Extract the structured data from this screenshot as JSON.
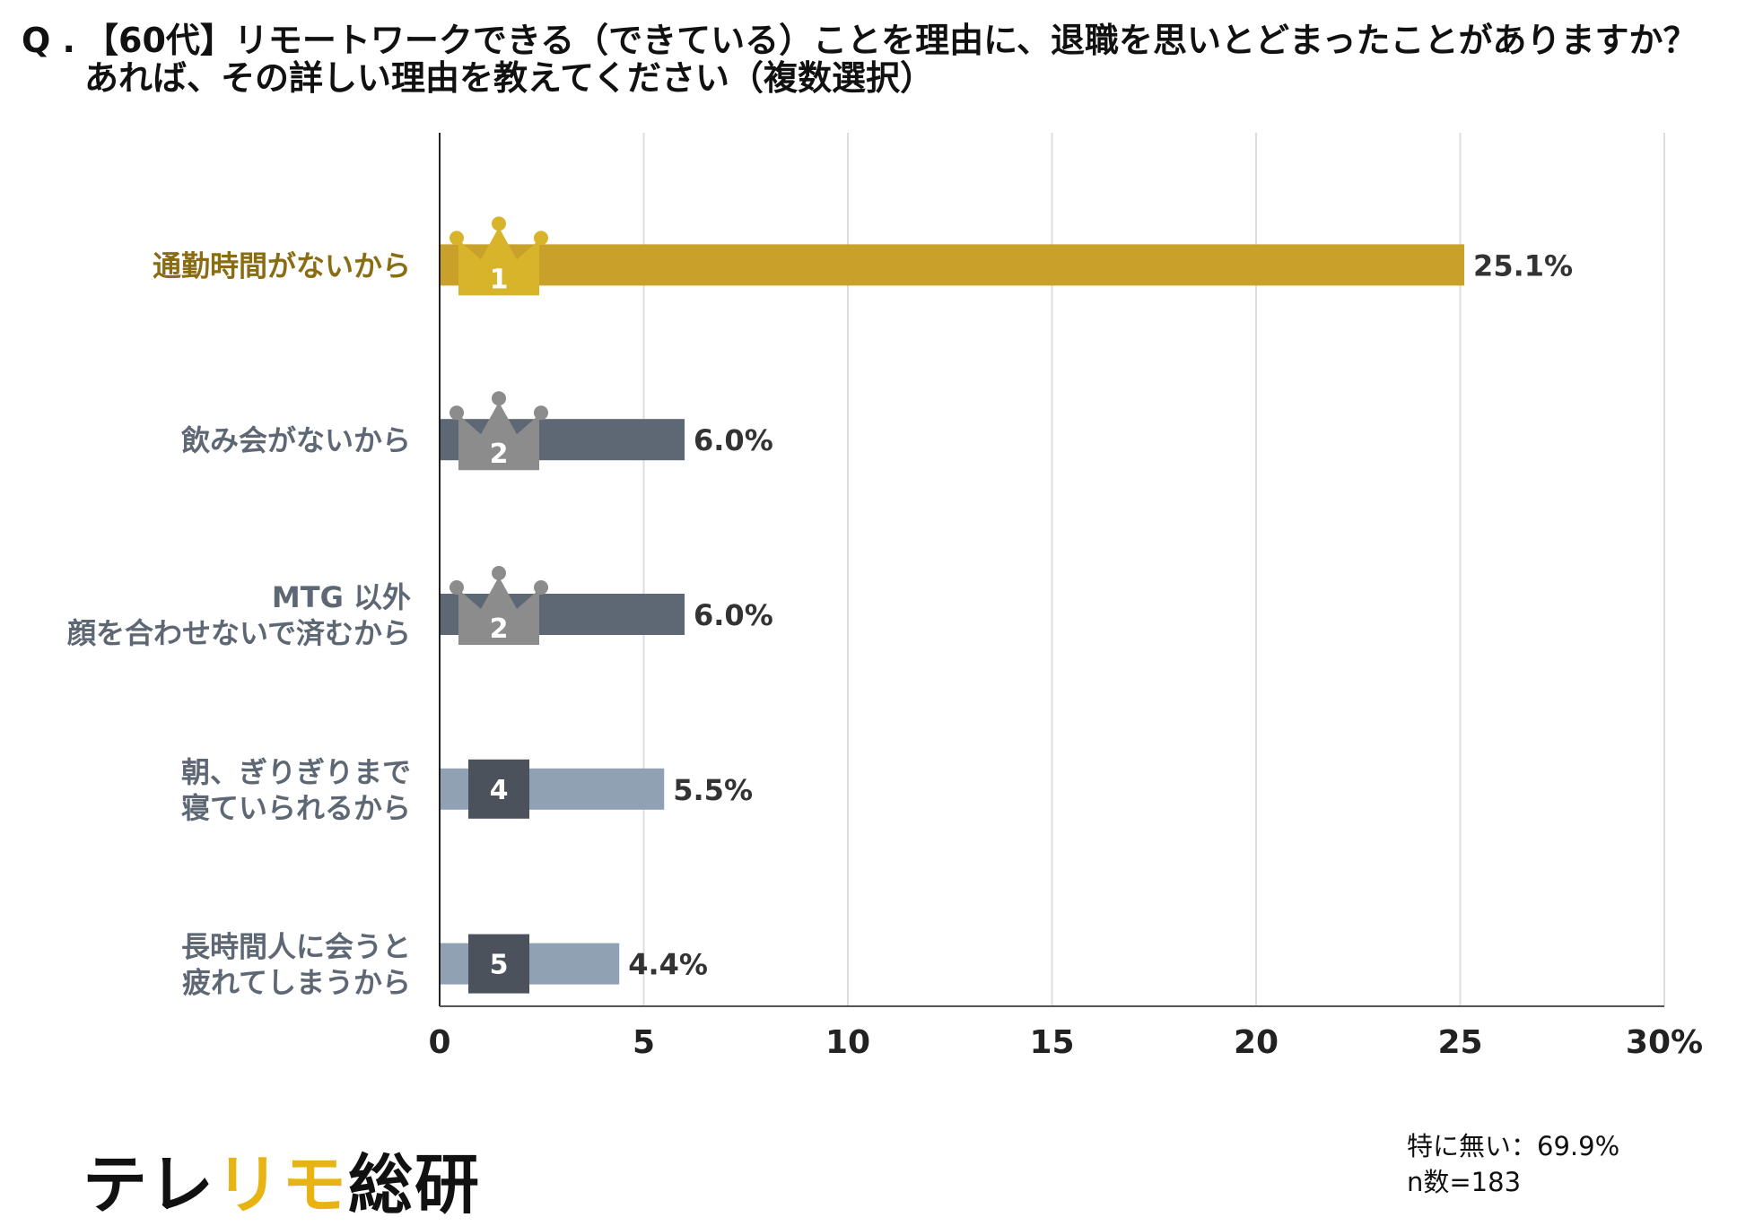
{
  "question": {
    "prefix": "Q .",
    "line1": "【60代】リモートワークできる（できている）ことを理由に、退職を思いとどまったことがありますか？",
    "line2": "あれば、その詳しい理由を教えてください（複数選択）"
  },
  "logo": {
    "part1": "テレ",
    "part2": "リモ",
    "part3": "総研"
  },
  "notes": {
    "none": "特に無い：69.9%",
    "n": "n数=183"
  },
  "colors": {
    "gold": "#c9a02a",
    "dark": "#5e6874",
    "light": "#8fa1b2",
    "crown_gold": "#d8b42a",
    "crown_silver": "#8c8c8c",
    "badge": "#4c525c",
    "grid": "#dddddd"
  },
  "chart_data": {
    "type": "bar",
    "orientation": "horizontal",
    "title": "",
    "xlabel": "",
    "ylabel": "",
    "xlim": [
      0,
      30
    ],
    "ticks": [
      "0",
      "5",
      "10",
      "15",
      "20",
      "25",
      "30%"
    ],
    "tick_values": [
      0,
      5,
      10,
      15,
      20,
      25,
      30
    ],
    "categories": [
      [
        "通勤時間がないから"
      ],
      [
        "飲み会がないから"
      ],
      [
        "MTG 以外",
        "顔を合わせないで済むから"
      ],
      [
        "朝、ぎりぎりまで",
        "寝ていられるから"
      ],
      [
        "長時間人に会うと",
        "疲れてしまうから"
      ]
    ],
    "values": [
      25.1,
      6.0,
      6.0,
      5.5,
      4.4
    ],
    "value_labels": [
      "25.1%",
      "6.0%",
      "6.0%",
      "5.5%",
      "4.4%"
    ],
    "ranks": [
      "1",
      "2",
      "2",
      "4",
      "5"
    ],
    "rank_style": [
      "crown-gold",
      "crown-silver",
      "crown-silver",
      "badge",
      "badge"
    ],
    "bar_color": [
      "gold",
      "dark",
      "dark",
      "light",
      "light"
    ],
    "label_color": [
      "#8a6c12",
      "#5e6874",
      "#5e6874",
      "#5e6874",
      "#5e6874"
    ],
    "grid": true
  }
}
